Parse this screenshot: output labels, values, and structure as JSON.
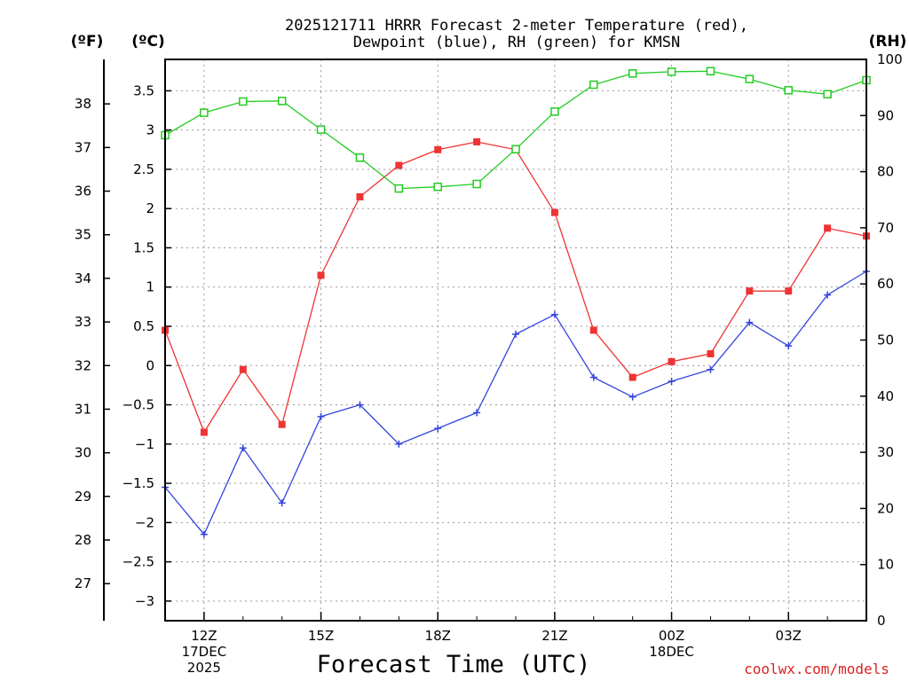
{
  "chart_data": {
    "type": "line",
    "title": [
      "2025121711 HRRR Forecast 2-meter Temperature (red),",
      "Dewpoint (blue), RH (green) for KMSN"
    ],
    "xlabel": "Forecast Time (UTC)",
    "unit_labels": {
      "fahrenheit": "(ºF)",
      "celsius": "(ºC)",
      "rh": "(RH)"
    },
    "watermark": "coolwx.com/models",
    "x": [
      "11Z",
      "12Z",
      "13Z",
      "14Z",
      "15Z",
      "16Z",
      "17Z",
      "18Z",
      "19Z",
      "20Z",
      "21Z",
      "22Z",
      "23Z",
      "00Z",
      "01Z",
      "02Z",
      "03Z",
      "04Z",
      "05Z"
    ],
    "x_tick_labels": [
      {
        "index": 1,
        "lines": [
          "12Z",
          "17DEC",
          "2025"
        ]
      },
      {
        "index": 4,
        "lines": [
          "15Z"
        ]
      },
      {
        "index": 7,
        "lines": [
          "18Z"
        ]
      },
      {
        "index": 10,
        "lines": [
          "21Z"
        ]
      },
      {
        "index": 13,
        "lines": [
          "00Z",
          "18DEC"
        ]
      },
      {
        "index": 16,
        "lines": [
          "03Z"
        ]
      }
    ],
    "y_celsius": {
      "range": [
        -3.25,
        3.9
      ],
      "ticks": [
        "-3",
        "-2.5",
        "-2",
        "-1.5",
        "-1",
        "-0.5",
        "0",
        "0.5",
        "1",
        "1.5",
        "2",
        "2.5",
        "3",
        "3.5"
      ]
    },
    "y_fahrenheit": {
      "ticks": [
        "27",
        "28",
        "29",
        "30",
        "31",
        "32",
        "33",
        "34",
        "35",
        "36",
        "37",
        "38"
      ]
    },
    "y_rh": {
      "range": [
        0,
        100
      ],
      "ticks": [
        "0",
        "10",
        "20",
        "30",
        "40",
        "50",
        "60",
        "70",
        "80",
        "90",
        "100"
      ]
    },
    "grid": true,
    "series": [
      {
        "name": "Temperature",
        "axis": "celsius",
        "color": "#ee3333",
        "marker": "filled-square",
        "values": [
          0.45,
          -0.85,
          -0.05,
          -0.75,
          1.15,
          2.15,
          2.55,
          2.75,
          2.85,
          2.75,
          1.95,
          0.45,
          -0.15,
          0.05,
          0.15,
          0.95,
          0.95,
          1.75,
          1.65
        ]
      },
      {
        "name": "Dewpoint",
        "axis": "celsius",
        "color": "#3344dd",
        "marker": "plus",
        "values": [
          -1.55,
          -2.15,
          -1.05,
          -1.75,
          -0.65,
          -0.5,
          -1.0,
          -0.8,
          -0.6,
          0.4,
          0.65,
          -0.15,
          -0.4,
          -0.2,
          -0.05,
          0.55,
          0.25,
          0.9,
          1.2
        ]
      },
      {
        "name": "RH",
        "axis": "rh",
        "color": "#22cc22",
        "marker": "open-square",
        "values": [
          86.5,
          90.5,
          92.5,
          92.6,
          87.5,
          82.5,
          77.0,
          77.3,
          77.8,
          84.0,
          90.7,
          95.5,
          97.5,
          97.8,
          97.9,
          96.5,
          94.5,
          93.8,
          96.3
        ]
      }
    ]
  }
}
